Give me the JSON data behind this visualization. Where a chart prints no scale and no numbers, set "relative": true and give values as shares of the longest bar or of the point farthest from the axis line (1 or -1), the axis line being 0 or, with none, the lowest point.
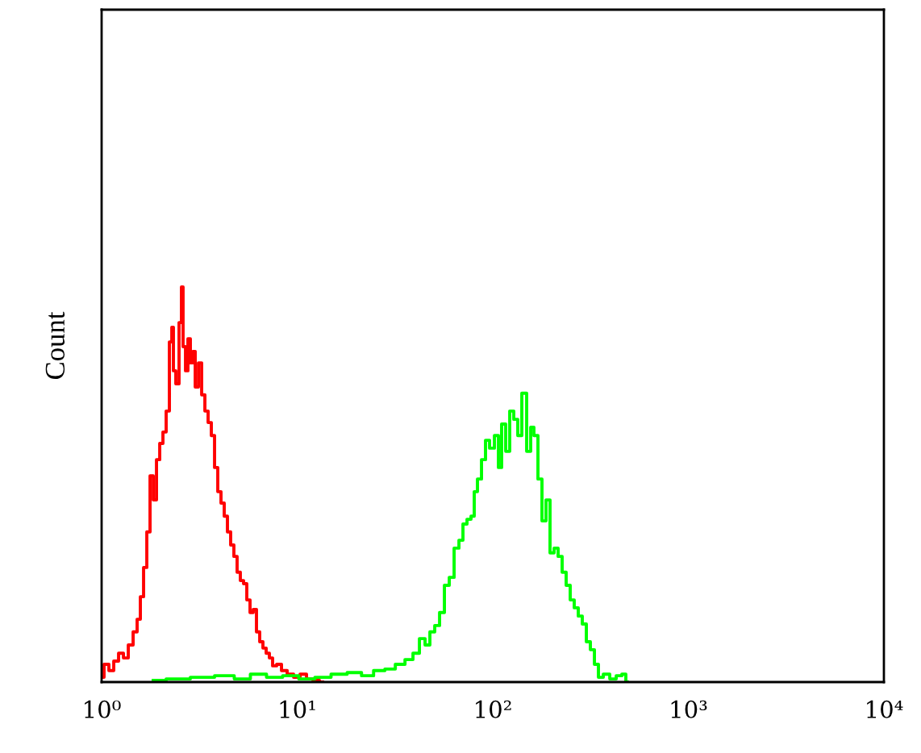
{
  "chart_data": {
    "type": "step",
    "ylabel": "Count",
    "relative": true,
    "log": "x",
    "tick_labels": "x",
    "xlim": [
      1,
      10000
    ],
    "xticks": [
      {
        "value": 1,
        "label": "10⁰"
      },
      {
        "value": 10,
        "label": "10¹"
      },
      {
        "value": 100,
        "label": "10²"
      },
      {
        "value": 1000,
        "label": "10³"
      },
      {
        "value": 10000,
        "label": "10⁴"
      }
    ],
    "series": [
      {
        "color": "#ff0000",
        "x": [
          1.0,
          1.058,
          1.121,
          1.186,
          1.256,
          1.33,
          1.408,
          1.49,
          1.548,
          1.608,
          1.67,
          1.735,
          1.802,
          1.872,
          1.944,
          2.02,
          2.097,
          2.179,
          2.263,
          2.307,
          2.35,
          2.441,
          2.536,
          2.584,
          2.634,
          2.736,
          2.789,
          2.897,
          2.953,
          3.067,
          3.186,
          3.309,
          3.437,
          3.57,
          3.708,
          3.852,
          4.0,
          4.155,
          4.316,
          4.482,
          4.656,
          4.836,
          5.023,
          5.218,
          5.42,
          5.63,
          5.848,
          6.074,
          6.31,
          6.554,
          6.808,
          7.071,
          7.345,
          7.63,
          8.075,
          8.551,
          9.224,
          9.952,
          10.74,
          11.58,
          12.5,
          13.49
        ],
        "values": [
          0.012,
          0.045,
          0.029,
          0.053,
          0.073,
          0.061,
          0.094,
          0.127,
          0.159,
          0.216,
          0.29,
          0.38,
          0.522,
          0.461,
          0.563,
          0.604,
          0.633,
          0.686,
          0.861,
          0.898,
          0.788,
          0.755,
          0.91,
          1.0,
          0.849,
          0.788,
          0.869,
          0.808,
          0.837,
          0.747,
          0.808,
          0.727,
          0.686,
          0.657,
          0.624,
          0.543,
          0.482,
          0.453,
          0.42,
          0.38,
          0.347,
          0.318,
          0.278,
          0.257,
          0.249,
          0.208,
          0.176,
          0.184,
          0.127,
          0.102,
          0.086,
          0.073,
          0.061,
          0.041,
          0.045,
          0.029,
          0.02,
          0.012,
          0.02,
          0.008,
          0.004,
          0.0
        ]
      },
      {
        "color": "#00ff00",
        "x": [
          1.836,
          2.441,
          3.246,
          4.316,
          5.218,
          6.31,
          7.63,
          9.224,
          11.15,
          13.49,
          16.31,
          19.71,
          22.95,
          26.22,
          29.95,
          33.56,
          37.61,
          40.57,
          43.78,
          46.34,
          49.06,
          51.94,
          54.99,
          58.21,
          61.63,
          65.24,
          69.07,
          71.74,
          75.95,
          78.88,
          81.93,
          85.1,
          90.08,
          93.57,
          99.06,
          104.9,
          108.9,
          113.1,
          119.8,
          124.4,
          131.7,
          136.8,
          144.8,
          153.3,
          159.3,
          165.4,
          175.1,
          181.9,
          192.5,
          200.0,
          211.8,
          219.9,
          232.8,
          241.8,
          256.0,
          265.9,
          281.5,
          292.4,
          309.6,
          321.6,
          340.4,
          353.6,
          381.5,
          411.6,
          444.1,
          470.1,
          488.3
        ],
        "values": [
          0.004,
          0.008,
          0.012,
          0.016,
          0.008,
          0.02,
          0.012,
          0.016,
          0.008,
          0.012,
          0.02,
          0.024,
          0.016,
          0.029,
          0.033,
          0.045,
          0.057,
          0.073,
          0.11,
          0.094,
          0.127,
          0.143,
          0.176,
          0.245,
          0.265,
          0.339,
          0.359,
          0.4,
          0.412,
          0.42,
          0.482,
          0.514,
          0.563,
          0.612,
          0.592,
          0.624,
          0.543,
          0.653,
          0.584,
          0.686,
          0.665,
          0.624,
          0.731,
          0.584,
          0.645,
          0.624,
          0.514,
          0.408,
          0.461,
          0.327,
          0.339,
          0.318,
          0.278,
          0.245,
          0.208,
          0.188,
          0.167,
          0.147,
          0.102,
          0.082,
          0.045,
          0.012,
          0.02,
          0.008,
          0.016,
          0.02,
          0.0
        ]
      }
    ]
  }
}
